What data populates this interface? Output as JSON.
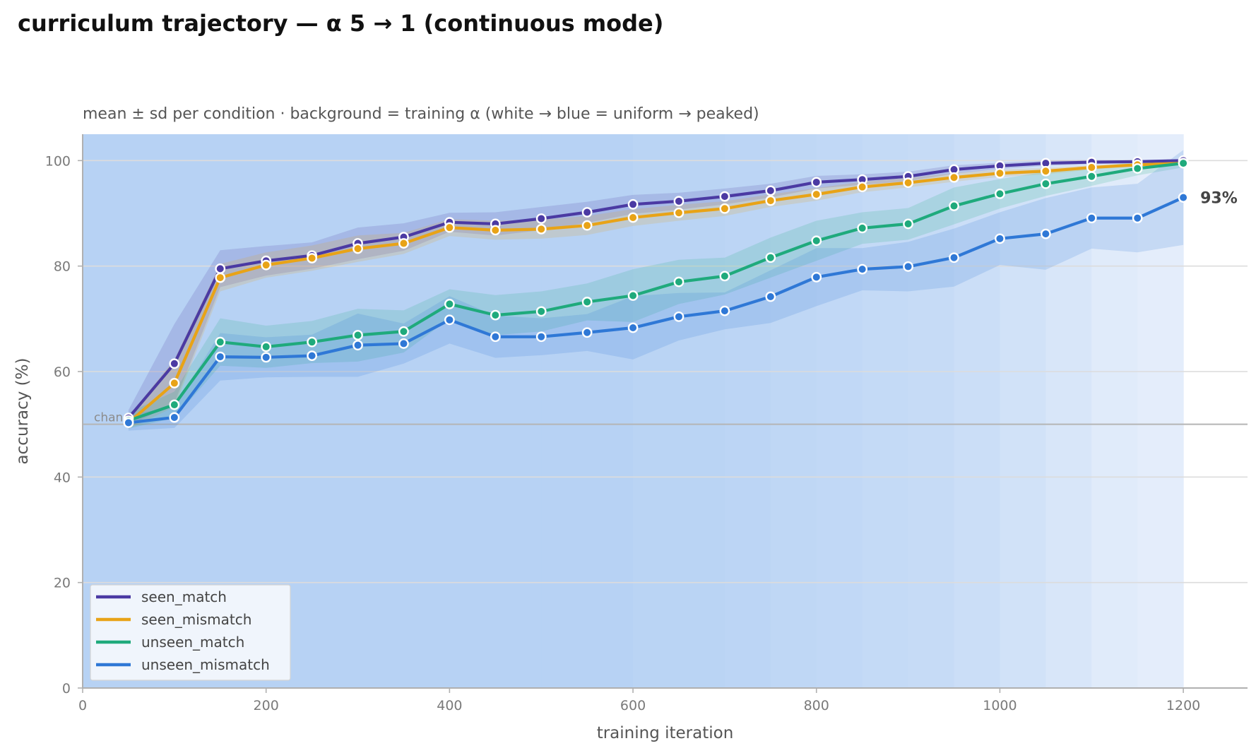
{
  "chart_data": {
    "type": "line",
    "title": "curriculum trajectory — α 5 → 1 (continuous mode)",
    "subtitle": "mean ± sd per condition · background = training α (white → blue = uniform → peaked)",
    "xlabel": "training iteration",
    "ylabel": "accuracy (%)",
    "xlim": [
      0,
      1270
    ],
    "ylim": [
      0,
      105
    ],
    "xticks": [
      0,
      200,
      400,
      600,
      800,
      1000,
      1200
    ],
    "yticks": [
      0,
      20,
      40,
      60,
      80,
      100
    ],
    "grid": "horizontal",
    "legend_position": "lower-left",
    "reference_line": {
      "y": 50,
      "label": "chance"
    },
    "end_annotation": {
      "series": "unseen_mismatch",
      "text": "93%"
    },
    "x": [
      50,
      100,
      150,
      200,
      250,
      300,
      350,
      400,
      450,
      500,
      550,
      600,
      650,
      700,
      750,
      800,
      850,
      900,
      950,
      1000,
      1050,
      1100,
      1150,
      1200
    ],
    "background_alpha": [
      5.0,
      5.0,
      5.0,
      5.0,
      5.0,
      5.0,
      5.0,
      5.0,
      5.0,
      5.0,
      5.0,
      5.0,
      4.8,
      4.8,
      4.6,
      4.4,
      4.2,
      4.0,
      3.8,
      3.4,
      3.0,
      2.4,
      1.8,
      1.5
    ],
    "series": [
      {
        "name": "seen_match",
        "color": "#4b3aa3",
        "values": [
          51.2,
          61.5,
          79.5,
          81.0,
          82.0,
          84.3,
          85.5,
          88.3,
          88.0,
          89.0,
          90.2,
          91.7,
          92.3,
          93.2,
          94.3,
          95.9,
          96.4,
          97.0,
          98.3,
          99.0,
          99.5,
          99.7,
          99.8,
          100.0
        ],
        "sd": [
          1.5,
          7.5,
          3.5,
          2.8,
          2.5,
          3.0,
          2.6,
          1.8,
          2.2,
          2.2,
          2.0,
          1.8,
          1.6,
          1.5,
          1.3,
          1.2,
          1.0,
          0.9,
          0.8,
          0.6,
          0.5,
          0.4,
          0.3,
          0.2
        ]
      },
      {
        "name": "seen_mismatch",
        "color": "#e8a317",
        "values": [
          50.3,
          57.8,
          77.8,
          80.2,
          81.5,
          83.3,
          84.3,
          87.3,
          86.8,
          87.0,
          87.7,
          89.2,
          90.1,
          90.9,
          92.4,
          93.6,
          95.0,
          95.8,
          96.8,
          97.6,
          98.0,
          98.7,
          99.2,
          99.5
        ],
        "sd": [
          1.2,
          4.5,
          2.6,
          2.4,
          2.4,
          2.5,
          2.0,
          1.6,
          1.8,
          1.8,
          1.8,
          1.6,
          1.5,
          1.4,
          1.2,
          1.2,
          1.0,
          0.9,
          0.8,
          0.7,
          0.6,
          0.4,
          0.3,
          0.2
        ]
      },
      {
        "name": "unseen_match",
        "color": "#1faa7c",
        "values": [
          50.7,
          53.7,
          65.6,
          64.7,
          65.6,
          66.9,
          67.6,
          72.8,
          70.7,
          71.4,
          73.2,
          74.4,
          77.0,
          78.1,
          81.6,
          84.8,
          87.2,
          88.0,
          91.4,
          93.7,
          95.6,
          97.0,
          98.5,
          99.5
        ],
        "sd": [
          1.5,
          2.5,
          4.5,
          4.0,
          4.0,
          5.0,
          4.0,
          2.8,
          3.8,
          3.8,
          3.5,
          5.0,
          4.2,
          3.5,
          3.8,
          3.8,
          3.0,
          3.0,
          3.5,
          2.8,
          2.3,
          1.8,
          1.3,
          0.8
        ]
      },
      {
        "name": "unseen_mismatch",
        "color": "#2f78d6",
        "values": [
          50.3,
          51.3,
          62.8,
          62.7,
          63.0,
          65.0,
          65.3,
          69.8,
          66.6,
          66.6,
          67.4,
          68.3,
          70.4,
          71.5,
          74.2,
          77.9,
          79.4,
          79.9,
          81.6,
          85.2,
          86.1,
          89.1,
          89.1,
          93.0
        ],
        "sd": [
          1.5,
          2.0,
          4.5,
          3.8,
          4.0,
          6.0,
          3.8,
          4.5,
          4.0,
          3.5,
          3.5,
          6.0,
          4.5,
          3.5,
          5.0,
          5.5,
          4.0,
          4.7,
          5.5,
          5.0,
          6.8,
          5.8,
          6.5,
          9.0
        ]
      }
    ]
  }
}
